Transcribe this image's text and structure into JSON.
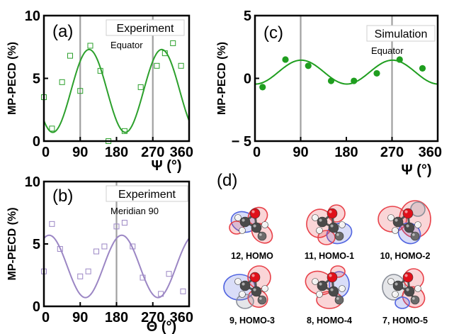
{
  "chart_data": [
    {
      "panel": "(a)",
      "type": "scatter",
      "legend_title": "Experiment",
      "legend_subtitle": "Equator",
      "xlabel": "Ψ (°)",
      "ylabel": "MP-PECD (%)",
      "xlim": [
        0,
        360
      ],
      "ylim": [
        0,
        10
      ],
      "xticks": [
        0,
        90,
        180,
        270,
        360
      ],
      "yticks": [
        0,
        5,
        10
      ],
      "vlines": [
        90,
        270
      ],
      "color": "#2ca02c",
      "points": [
        {
          "x": 0,
          "y": 3.5
        },
        {
          "x": 20,
          "y": 1.0
        },
        {
          "x": 45,
          "y": 4.7
        },
        {
          "x": 65,
          "y": 6.8
        },
        {
          "x": 90,
          "y": 4.0
        },
        {
          "x": 115,
          "y": 7.6
        },
        {
          "x": 140,
          "y": 5.6
        },
        {
          "x": 160,
          "y": 0.0
        },
        {
          "x": 200,
          "y": 0.8
        },
        {
          "x": 240,
          "y": 4.3
        },
        {
          "x": 280,
          "y": 6.0
        },
        {
          "x": 300,
          "y": 7.0
        },
        {
          "x": 320,
          "y": 7.8
        },
        {
          "x": 340,
          "y": 6.0
        }
      ],
      "fit": {
        "offset": 4.0,
        "amplitude": 3.3,
        "phase_deg": 112
      }
    },
    {
      "panel": "(b)",
      "type": "scatter",
      "legend_title": "Experiment",
      "legend_subtitle": "Meridian 90",
      "xlabel": "Θ (°)",
      "ylabel": "MP-PECD (%)",
      "xlim": [
        0,
        360
      ],
      "ylim": [
        0,
        10
      ],
      "xticks": [
        0,
        90,
        180,
        270,
        360
      ],
      "yticks": [
        0,
        5,
        10
      ],
      "vlines": [
        180
      ],
      "color": "#9b86c4",
      "points": [
        {
          "x": 0,
          "y": 2.8
        },
        {
          "x": 20,
          "y": 6.6
        },
        {
          "x": 40,
          "y": 4.6
        },
        {
          "x": 90,
          "y": 2.4
        },
        {
          "x": 110,
          "y": 2.8
        },
        {
          "x": 130,
          "y": 4.4
        },
        {
          "x": 150,
          "y": 4.8
        },
        {
          "x": 180,
          "y": 6.4
        },
        {
          "x": 200,
          "y": 6.7
        },
        {
          "x": 220,
          "y": 4.8
        },
        {
          "x": 245,
          "y": 2.3
        },
        {
          "x": 290,
          "y": 1.0
        },
        {
          "x": 310,
          "y": 2.6
        },
        {
          "x": 345,
          "y": 1.2
        }
      ],
      "fit": {
        "offset": 3.2,
        "amplitude": 2.5,
        "phase_deg": 13
      }
    },
    {
      "panel": "(c)",
      "type": "scatter",
      "legend_title": "Simulation",
      "legend_subtitle": "Equator",
      "xlabel": "Ψ (°)",
      "ylabel": "MP-PECD (%)",
      "xlim": [
        0,
        360
      ],
      "ylim": [
        -5,
        5
      ],
      "xticks": [
        0,
        90,
        180,
        270,
        360
      ],
      "yticks": [
        -5,
        0,
        5
      ],
      "ytick_labels": [
        "− 5",
        "0",
        "5"
      ],
      "vlines": [
        90,
        270
      ],
      "color": "#1f9e1f",
      "points": [
        {
          "x": 15,
          "y": -0.7
        },
        {
          "x": 60,
          "y": 1.5
        },
        {
          "x": 105,
          "y": 1.0
        },
        {
          "x": 150,
          "y": -0.2
        },
        {
          "x": 195,
          "y": -0.2
        },
        {
          "x": 240,
          "y": 0.4
        },
        {
          "x": 285,
          "y": 1.5
        },
        {
          "x": 330,
          "y": 0.8
        }
      ],
      "fit": {
        "offset": 0.5,
        "amplitude": 0.95,
        "phase_deg": 91
      }
    }
  ],
  "orbitals": {
    "panel_label": "(d)",
    "items": [
      {
        "label": "12, HOMO",
        "variant": 0
      },
      {
        "label": "11, HOMO-1",
        "variant": 1
      },
      {
        "label": "10, HOMO-2",
        "variant": 2
      },
      {
        "label": "9, HOMO-3",
        "variant": 3
      },
      {
        "label": "8, HOMO-4",
        "variant": 4
      },
      {
        "label": "7, HOMO-5",
        "variant": 5
      }
    ]
  }
}
